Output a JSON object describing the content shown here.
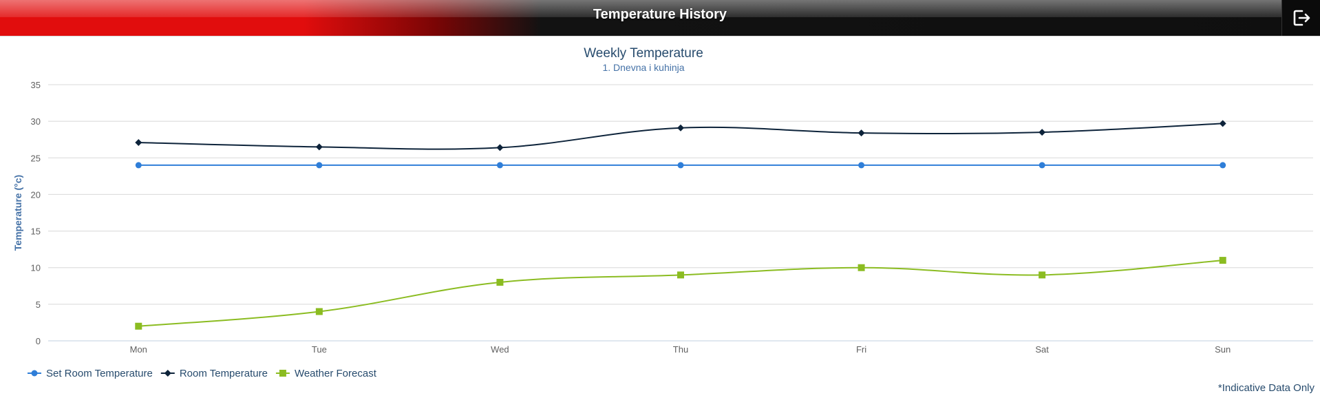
{
  "header": {
    "title": "Temperature History",
    "logout_icon": "logout-icon"
  },
  "footnote": "*Indicative Data Only",
  "chart_data": {
    "type": "line",
    "title": "Weekly Temperature",
    "subtitle": "1. Dnevna i kuhinja",
    "xlabel": "",
    "ylabel": "Temperature (°c)",
    "categories": [
      "Mon",
      "Tue",
      "Wed",
      "Thu",
      "Fri",
      "Sat",
      "Sun"
    ],
    "ylim": [
      0,
      35
    ],
    "yticks": [
      0,
      5,
      10,
      15,
      20,
      25,
      30,
      35
    ],
    "grid": true,
    "smooth": true,
    "legend": "bottom-left",
    "series": [
      {
        "name": "Set Room Temperature",
        "color": "#2f7ed8",
        "marker": "circle",
        "values": [
          24,
          24,
          24,
          24,
          24,
          24,
          24
        ]
      },
      {
        "name": "Room Temperature",
        "color": "#0d233a",
        "marker": "diamond",
        "values": [
          27.1,
          26.5,
          26.4,
          29.1,
          28.4,
          28.5,
          29.7
        ]
      },
      {
        "name": "Weather Forecast",
        "color": "#8bbc21",
        "marker": "square",
        "values": [
          2,
          4,
          8,
          9,
          10,
          9,
          11
        ]
      }
    ]
  }
}
